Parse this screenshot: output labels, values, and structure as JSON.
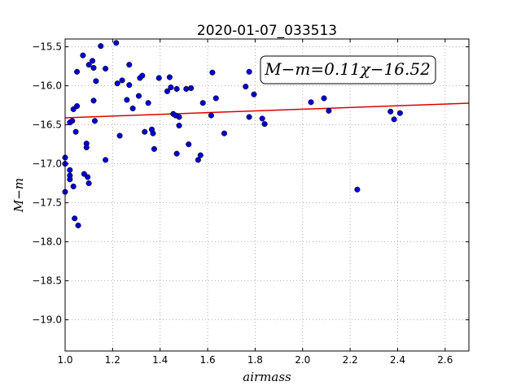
{
  "chart_data": {
    "type": "scatter",
    "title": "2020-01-07_033513",
    "xlabel": "airmass",
    "ylabel": "M−m",
    "xlim": [
      1.0,
      2.7
    ],
    "ylim": [
      -15.4,
      -19.4
    ],
    "y_inverted": true,
    "xticks": [
      1.0,
      1.2,
      1.4,
      1.6,
      1.8,
      2.0,
      2.2,
      2.4,
      2.6
    ],
    "xtick_labels": [
      "1.0",
      "1.2",
      "1.4",
      "1.6",
      "1.8",
      "2.0",
      "2.2",
      "2.4",
      "2.6"
    ],
    "yticks": [
      -15.5,
      -16.0,
      -16.5,
      -17.0,
      -17.5,
      -18.0,
      -18.5,
      -19.0
    ],
    "ytick_labels": [
      "−15.5",
      "−16.0",
      "−16.5",
      "−17.0",
      "−17.5",
      "−18.0",
      "−18.5",
      "−19.0"
    ],
    "grid": true,
    "annotation": "M−m=0.11χ−16.52",
    "colors": {
      "points": "#0000cc",
      "fit": "#dd0000",
      "grid": "#999999"
    },
    "fit_line": {
      "slope": 0.11,
      "intercept": -16.52
    },
    "points": [
      [
        1.0,
        -16.92
      ],
      [
        1.0,
        -17.0
      ],
      [
        1.0,
        -17.36
      ],
      [
        1.02,
        -17.08
      ],
      [
        1.02,
        -17.15
      ],
      [
        1.02,
        -17.2
      ],
      [
        1.02,
        -16.47
      ],
      [
        1.03,
        -16.45
      ],
      [
        1.035,
        -16.3
      ],
      [
        1.035,
        -17.29
      ],
      [
        1.04,
        -17.7
      ],
      [
        1.045,
        -16.59
      ],
      [
        1.05,
        -16.26
      ],
      [
        1.05,
        -15.82
      ],
      [
        1.055,
        -17.79
      ],
      [
        1.075,
        -15.61
      ],
      [
        1.08,
        -17.13
      ],
      [
        1.09,
        -16.74
      ],
      [
        1.09,
        -16.79
      ],
      [
        1.095,
        -17.17
      ],
      [
        1.1,
        -17.25
      ],
      [
        1.1,
        -15.73
      ],
      [
        1.115,
        -15.68
      ],
      [
        1.12,
        -16.19
      ],
      [
        1.12,
        -15.77
      ],
      [
        1.125,
        -16.45
      ],
      [
        1.13,
        -15.94
      ],
      [
        1.15,
        -15.49
      ],
      [
        1.17,
        -15.78
      ],
      [
        1.17,
        -16.95
      ],
      [
        1.215,
        -15.45
      ],
      [
        1.22,
        -15.97
      ],
      [
        1.23,
        -16.64
      ],
      [
        1.24,
        -15.93
      ],
      [
        1.26,
        -16.18
      ],
      [
        1.27,
        -15.99
      ],
      [
        1.27,
        -15.73
      ],
      [
        1.285,
        -16.29
      ],
      [
        1.31,
        -16.13
      ],
      [
        1.315,
        -15.9
      ],
      [
        1.325,
        -15.87
      ],
      [
        1.335,
        -16.59
      ],
      [
        1.35,
        -16.22
      ],
      [
        1.365,
        -16.56
      ],
      [
        1.37,
        -16.61
      ],
      [
        1.375,
        -16.81
      ],
      [
        1.395,
        -15.9
      ],
      [
        1.43,
        -16.07
      ],
      [
        1.44,
        -15.89
      ],
      [
        1.445,
        -16.02
      ],
      [
        1.455,
        -16.36
      ],
      [
        1.465,
        -16.38
      ],
      [
        1.47,
        -16.04
      ],
      [
        1.47,
        -16.87
      ],
      [
        1.48,
        -16.51
      ],
      [
        1.48,
        -16.4
      ],
      [
        1.51,
        -16.04
      ],
      [
        1.52,
        -16.75
      ],
      [
        1.53,
        -16.03
      ],
      [
        1.56,
        -16.95
      ],
      [
        1.57,
        -16.89
      ],
      [
        1.58,
        -16.22
      ],
      [
        1.615,
        -16.38
      ],
      [
        1.62,
        -15.83
      ],
      [
        1.635,
        -16.16
      ],
      [
        1.67,
        -16.61
      ],
      [
        1.76,
        -16.01
      ],
      [
        1.775,
        -16.4
      ],
      [
        1.775,
        -15.82
      ],
      [
        1.795,
        -16.11
      ],
      [
        1.83,
        -16.42
      ],
      [
        1.84,
        -16.49
      ],
      [
        2.035,
        -16.21
      ],
      [
        2.09,
        -16.16
      ],
      [
        2.11,
        -16.32
      ],
      [
        2.23,
        -17.33
      ],
      [
        2.37,
        -16.33
      ],
      [
        2.385,
        -16.43
      ],
      [
        2.41,
        -16.35
      ]
    ]
  }
}
